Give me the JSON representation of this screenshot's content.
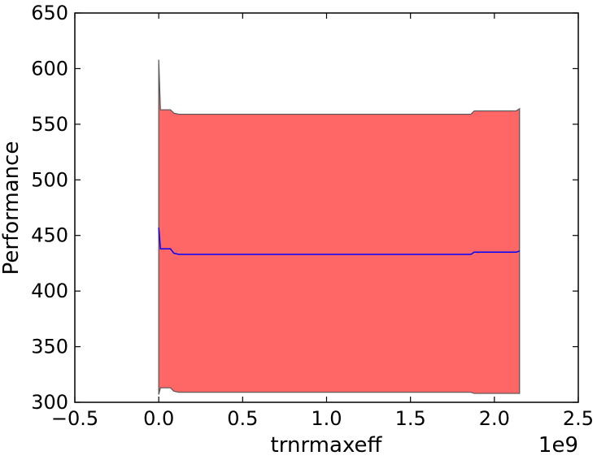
{
  "chart_data": {
    "type": "area",
    "xlabel": "trnrmaxeff",
    "ylabel": "Performance",
    "x_offset_label": "1e9",
    "xlim": [
      -0.5,
      2.5
    ],
    "ylim": [
      300,
      650
    ],
    "x_scale_note": "x values in units of 1e9",
    "xticks": [
      "−0.5",
      "0.0",
      "0.5",
      "1.0",
      "1.5",
      "2.0",
      "2.5"
    ],
    "xtick_values": [
      -0.5,
      0.0,
      0.5,
      1.0,
      1.5,
      2.0,
      2.5
    ],
    "yticks": [
      "300",
      "350",
      "400",
      "450",
      "500",
      "550",
      "600",
      "650"
    ],
    "ytick_values": [
      300,
      350,
      400,
      450,
      500,
      550,
      600,
      650
    ],
    "grid": false,
    "series": [
      {
        "x": [
          0.0,
          0.01,
          0.04,
          0.07,
          0.09,
          0.12,
          1.0,
          1.86,
          1.88,
          2.0,
          2.13,
          2.15
        ],
        "mean": [
          457,
          438,
          438,
          438,
          434,
          433,
          433,
          433,
          435,
          435,
          435,
          436
        ],
        "upper": [
          608,
          563,
          563,
          563,
          560,
          559,
          559,
          559,
          562,
          562,
          562,
          564
        ],
        "lower": [
          307,
          313,
          313,
          313,
          310,
          309,
          309,
          309,
          308,
          308,
          308,
          308
        ]
      }
    ],
    "colors": {
      "band_fill": "#ff6666",
      "band_edge": "#555555",
      "mean_line": "#0000ff"
    }
  }
}
